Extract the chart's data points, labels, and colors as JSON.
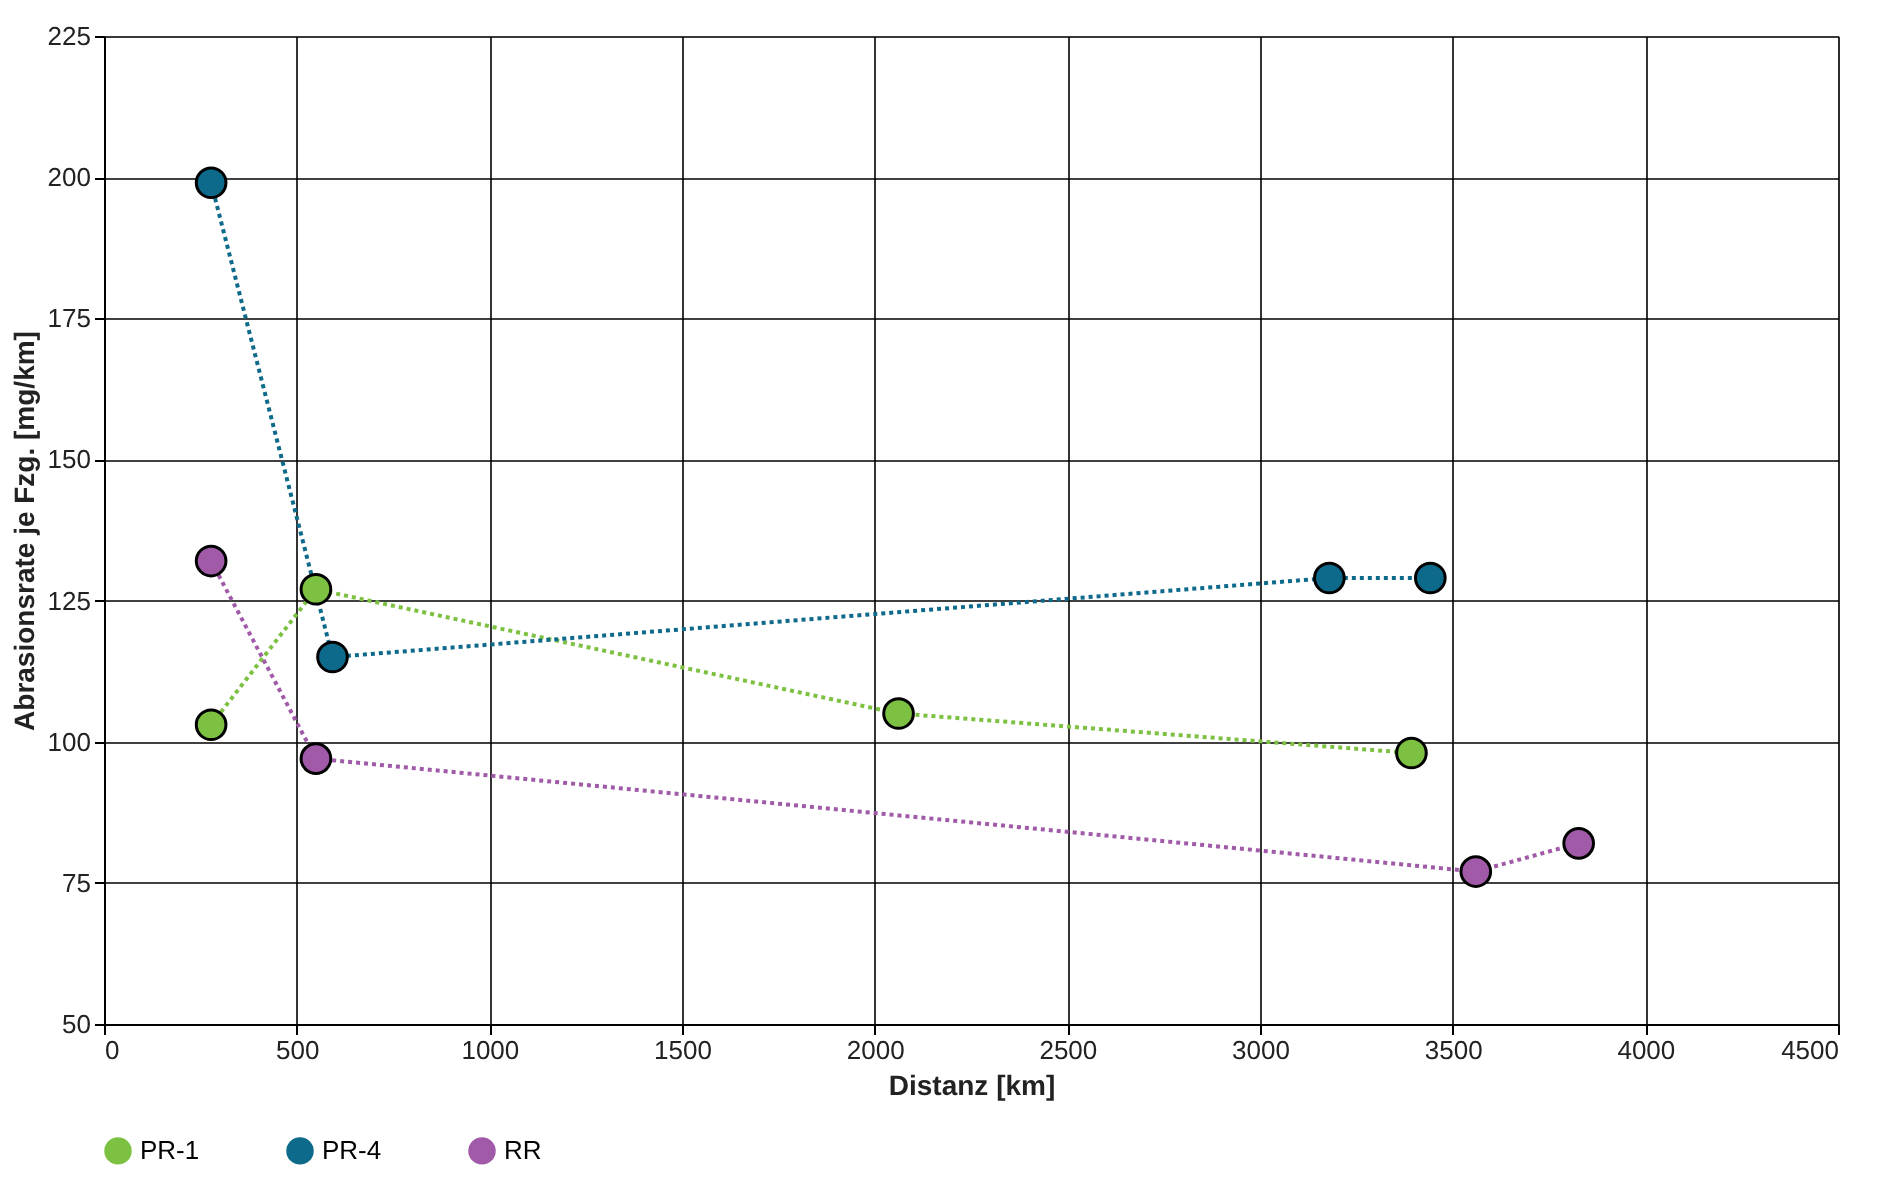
{
  "chart_data": {
    "type": "line",
    "xlabel": "Distanz [km]",
    "ylabel": "Abrasionsrate je Fzg. [mg/km]",
    "series": [
      {
        "name": "PR-1",
        "color": "#7dc142",
        "x": [
          278,
          550,
          2062,
          3393
        ],
        "values": [
          103,
          127,
          105,
          98
        ]
      },
      {
        "name": "PR-4",
        "color": "#0e6a8a",
        "x": [
          278,
          593,
          3180,
          3442
        ],
        "values": [
          199,
          115,
          129,
          129
        ]
      },
      {
        "name": "RR",
        "color": "#a05aa8",
        "x": [
          278,
          550,
          3560,
          3827
        ],
        "values": [
          132,
          97,
          77,
          82
        ]
      }
    ],
    "xlim": [
      0,
      4500
    ],
    "xticks": [
      0,
      500,
      1000,
      1500,
      2000,
      2500,
      3000,
      3500,
      4000,
      4500
    ],
    "ylim": [
      50,
      225
    ],
    "yticks": [
      50,
      75,
      100,
      125,
      150,
      175,
      200,
      225
    ],
    "grid": true,
    "legend": "bottom",
    "marker": "circle",
    "line_style": "dotted"
  }
}
